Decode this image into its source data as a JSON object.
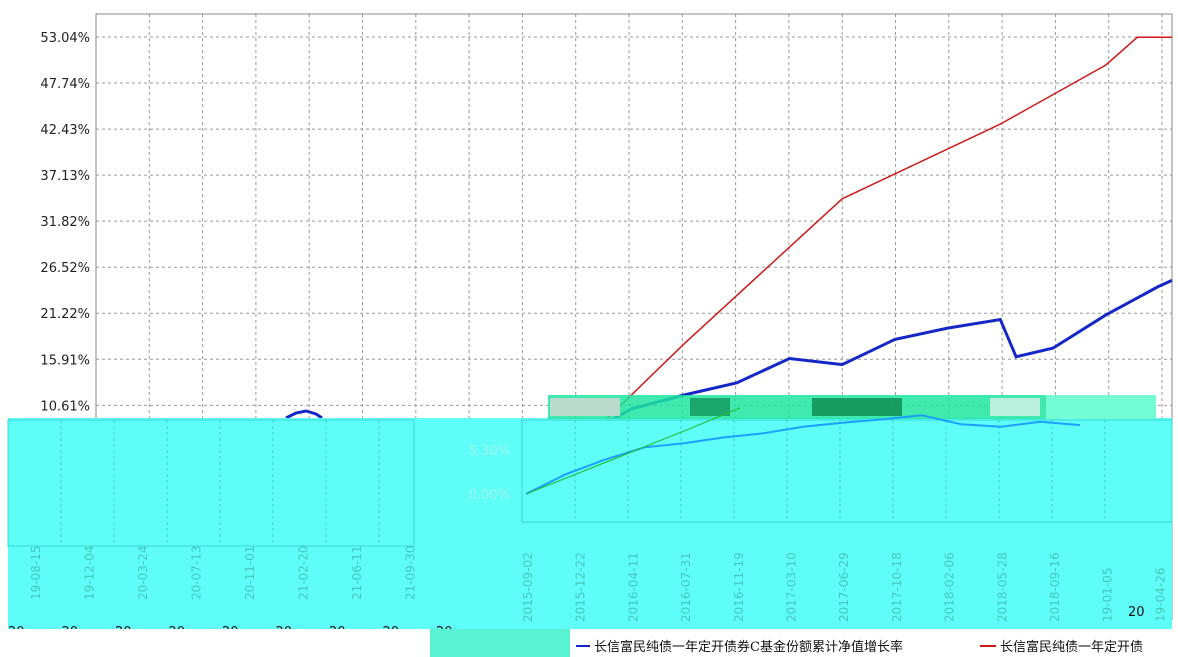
{
  "chart_data": {
    "type": "line",
    "y_ticks": [
      "53.04%",
      "47.74%",
      "42.43%",
      "37.13%",
      "31.82%",
      "26.52%",
      "21.22%",
      "15.91%",
      "10.61%",
      "5.30%",
      "0.00%"
    ],
    "ylim": [
      0,
      53.04
    ],
    "grid": true,
    "legend_position": "bottom",
    "legend": [
      "长信富民纯债一年定开债券C基金份额累计净值增长率",
      "长信富民纯债一年定开债"
    ],
    "x_ticks_left": [
      "19-08-15",
      "19-12-04",
      "20-03-24",
      "20-07-13",
      "20-11-01",
      "21-02-20",
      "21-06-11",
      "21-09-30"
    ],
    "x_year_left": [
      "20",
      "20",
      "20",
      "20",
      "20",
      "20",
      "20",
      "20",
      "20"
    ],
    "x_ticks_right": [
      "2015-09-02",
      "2015-12-22",
      "2016-04-11",
      "2016-07-31",
      "2016-11-19",
      "2017-03-10",
      "2017-06-29",
      "2017-10-18",
      "2018-02-06",
      "2018-05-28",
      "2018-09-16",
      "19-01-05",
      "19-04-26"
    ],
    "x_year_right": "20",
    "series": [
      {
        "name": "长信富民纯债一年定开债券C基金份额累计净值增长率",
        "color": "#1428c8",
        "x": [
          "2015-09-02",
          "2015-12-22",
          "2016-04-11",
          "2016-07-31",
          "2016-11-19",
          "2017-03-10",
          "2017-06-29",
          "2017-10-18",
          "2018-02-06",
          "2018-05-28",
          "2018-06-20",
          "2018-09-16",
          "19-01-05",
          "19-04-26",
          "19-05-20"
        ],
        "values": [
          0.0,
          6.8,
          10.2,
          11.8,
          13.2,
          16.0,
          15.3,
          18.2,
          19.5,
          20.5,
          16.2,
          17.2,
          21.0,
          24.3,
          25.0
        ]
      },
      {
        "name": "长信富民纯债一年定开债",
        "color": "#cc1a1a",
        "x": [
          "2015-09-02",
          "2016-07-31",
          "2017-06-29",
          "2018-05-28",
          "19-01-05",
          "19-03-15",
          "19-05-20"
        ],
        "values": [
          0.0,
          17.7,
          34.4,
          43.0,
          49.8,
          53.0,
          53.0
        ]
      }
    ],
    "overlay_series": [
      {
        "color": "#1aa0ff",
        "values": [
          0.0,
          2.4,
          4.2,
          5.7,
          6.2,
          6.9,
          7.4,
          8.2,
          8.7,
          9.1,
          9.6,
          8.5,
          8.2,
          8.8,
          8.4
        ]
      },
      {
        "color": "#22c040",
        "values": [
          0.0,
          2.6,
          5.2,
          7.8,
          10.5
        ]
      }
    ]
  }
}
